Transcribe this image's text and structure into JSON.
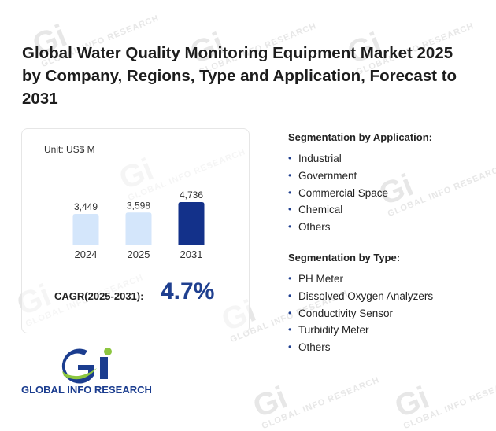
{
  "title": "Global Water Quality Monitoring Equipment Market 2025 by Company, Regions, Type and Application, Forecast to 2031",
  "watermark": {
    "mark": "Gi",
    "text": "GLOBAL INFO RESEARCH"
  },
  "chart_data": {
    "type": "bar",
    "unit_label": "Unit: US$ M",
    "categories": [
      "2024",
      "2025",
      "2031"
    ],
    "values": [
      3449,
      3598,
      4736
    ],
    "value_labels": [
      "3,449",
      "3,598",
      "4,736"
    ],
    "colors": [
      "#d4e6fb",
      "#d4e6fb",
      "#13318a"
    ],
    "title": "",
    "xlabel": "",
    "ylabel": "",
    "grid": false
  },
  "cagr": {
    "label": "CAGR(2025-2031):",
    "value": "4.7%"
  },
  "segmentation_application": {
    "title": "Segmentation by Application:",
    "items": [
      "Industrial",
      "Government",
      "Commercial Space",
      "Chemical",
      "Others"
    ]
  },
  "segmentation_type": {
    "title": "Segmentation by Type:",
    "items": [
      "PH Meter",
      "Dissolved Oxygen Analyzers",
      "Conductivity Sensor",
      "Turbidity Meter",
      "Others"
    ]
  },
  "logo": {
    "text": "GLOBAL INFO RESEARCH",
    "brand_colors": [
      "#1b3d8f",
      "#8cc63f"
    ]
  },
  "bullet": "•"
}
